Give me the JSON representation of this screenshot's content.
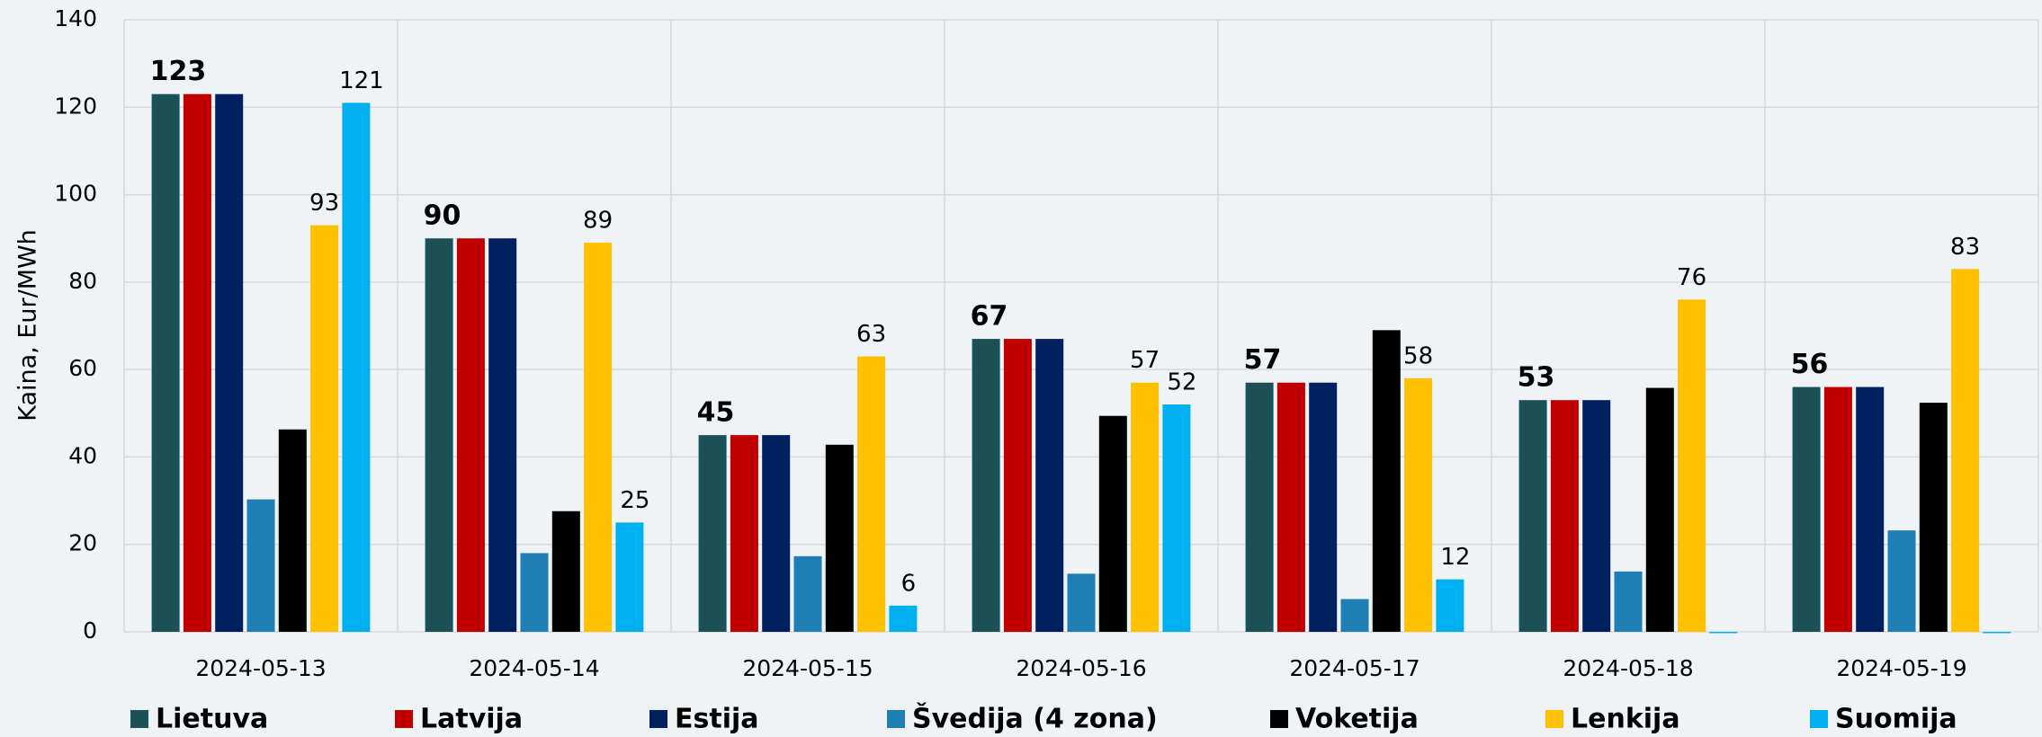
{
  "chart_data": {
    "type": "bar",
    "ylabel": "Kaina, Eur/MWh",
    "categories": [
      "2024-05-13",
      "2024-05-14",
      "2024-05-15",
      "2024-05-16",
      "2024-05-17",
      "2024-05-18",
      "2024-05-19"
    ],
    "series": [
      {
        "name": "Lietuva",
        "color": "#1b5057",
        "values": [
          123,
          90,
          45,
          67,
          57,
          53,
          56
        ],
        "data_labels": true,
        "label_bold": true
      },
      {
        "name": "Latvija",
        "color": "#c00000",
        "values": [
          123,
          90,
          45,
          67,
          57,
          53,
          56
        ]
      },
      {
        "name": "Estija",
        "color": "#002060",
        "values": [
          123,
          90,
          45,
          67,
          57,
          53,
          56
        ]
      },
      {
        "name": "Švedija (4 zona)",
        "color": "#1f7fb4",
        "values": [
          30.3,
          18,
          17.3,
          13.3,
          7.5,
          13.8,
          23.2
        ]
      },
      {
        "name": "Voketija",
        "color": "#000000",
        "values": [
          46.3,
          27.6,
          42.8,
          49.4,
          69,
          55.8,
          52.4
        ]
      },
      {
        "name": "Lenkija",
        "color": "#ffc000",
        "values": [
          93,
          89,
          63,
          57,
          58,
          76,
          83
        ],
        "data_labels": true
      },
      {
        "name": "Suomija",
        "color": "#00b0f0",
        "values": [
          121,
          25,
          6,
          52,
          12,
          -0.3,
          -0.3
        ],
        "value_labels": [
          "121",
          "25",
          "6",
          "52",
          "12",
          null,
          null
        ]
      }
    ],
    "ylim": [
      0,
      140
    ],
    "yticks": [
      0,
      20,
      40,
      60,
      80,
      100,
      120,
      140
    ],
    "grid": true,
    "legend": "bottom"
  }
}
